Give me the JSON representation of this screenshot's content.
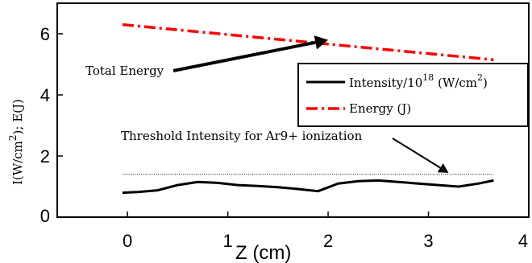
{
  "chart_data": {
    "type": "line",
    "xlabel": "Z (cm)",
    "ylabel": "I(W/cm2); E(J)",
    "xlim": [
      -0.7,
      4
    ],
    "ylim": [
      0,
      7
    ],
    "x_ticks": [
      0,
      1,
      2,
      3,
      4
    ],
    "y_ticks": [
      0,
      2,
      4,
      6
    ],
    "legend_position": "right, middle",
    "series": [
      {
        "name": "Intensity/10^18 (W/cm^2)",
        "color": "#000000",
        "style": "solid",
        "x": [
          -0.05,
          0.1,
          0.3,
          0.5,
          0.7,
          0.9,
          1.1,
          1.3,
          1.5,
          1.7,
          1.9,
          2.1,
          2.3,
          2.5,
          2.7,
          2.9,
          3.1,
          3.3,
          3.5,
          3.65
        ],
        "y": [
          0.8,
          0.82,
          0.88,
          1.05,
          1.15,
          1.12,
          1.05,
          1.02,
          0.98,
          0.92,
          0.85,
          1.1,
          1.18,
          1.2,
          1.15,
          1.1,
          1.05,
          1.0,
          1.1,
          1.2
        ]
      },
      {
        "name": "Energy (J)",
        "color": "#ff0000",
        "style": "dash-dot",
        "x": [
          -0.05,
          3.65
        ],
        "y": [
          6.3,
          5.15
        ]
      }
    ],
    "reference_lines": [
      {
        "label": "Threshold Intensity for Ar9+ ionization",
        "y": 1.4,
        "x_range": [
          -0.05,
          3.65
        ],
        "style": "dotted",
        "color": "#000000"
      }
    ],
    "annotations": [
      {
        "text": "Total Energy",
        "points_to": {
          "x": 2.0,
          "y": 5.8
        }
      },
      {
        "text": "Threshold Intensity for Ar9+ ionization",
        "points_to": {
          "x": 3.2,
          "y": 1.45
        }
      }
    ],
    "legend_entries": [
      {
        "text": "Intensity/10",
        "sup": "18",
        "text2": " (W/cm",
        "sup2": "2",
        "text3": ")"
      },
      {
        "text": "Energy (J)"
      }
    ],
    "axis_title_x": "Z (cm)",
    "axis_title_y": {
      "a": "I(W/cm",
      "sup": "2",
      "b": "); E(J)"
    }
  }
}
